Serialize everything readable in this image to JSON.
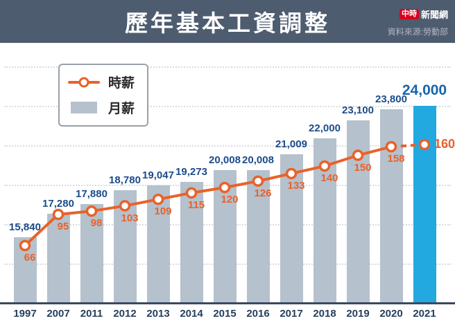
{
  "header": {
    "title": "歷年基本工資調整",
    "logo": {
      "brand_left": "中時",
      "brand_right": "新聞網"
    },
    "source": "資料來源:勞動部"
  },
  "legend": {
    "hourly": "時薪",
    "monthly": "月薪"
  },
  "chart_data": {
    "type": "bar+line",
    "title": "歷年基本工資調整",
    "categories": [
      "1997",
      "2007",
      "2011",
      "2012",
      "2013",
      "2014",
      "2015",
      "2016",
      "2017",
      "2018",
      "2019",
      "2020",
      "2021"
    ],
    "series": [
      {
        "name": "月薪",
        "type": "bar",
        "values": [
          15840,
          17280,
          17880,
          18780,
          19047,
          19273,
          20008,
          20008,
          21009,
          22000,
          23100,
          23800,
          24000
        ],
        "labels": [
          "15,840",
          "17,280",
          "17,880",
          "18,780",
          "19,047",
          "19,273",
          "20,008",
          "20,008",
          "21,009",
          "22,000",
          "23,100",
          "23,800",
          "24,000"
        ]
      },
      {
        "name": "時薪",
        "type": "line",
        "values": [
          66,
          95,
          98,
          103,
          109,
          115,
          120,
          126,
          133,
          140,
          150,
          158,
          160
        ],
        "labels": [
          "66",
          "95",
          "98",
          "103",
          "109",
          "115",
          "120",
          "126",
          "133",
          "140",
          "150",
          "158",
          "160"
        ]
      }
    ],
    "highlight_index": 12,
    "legend_position": "top-left",
    "grid": "dotted-horizontal",
    "colors": {
      "bar": "#b5c1cc",
      "bar_highlight": "#21a9e0",
      "line": "#e8622a",
      "bar_label": "#1c4c8a",
      "highlight_label": "#1565ad",
      "line_label": "#e8622a",
      "header_bg": "#4e5c70"
    }
  }
}
